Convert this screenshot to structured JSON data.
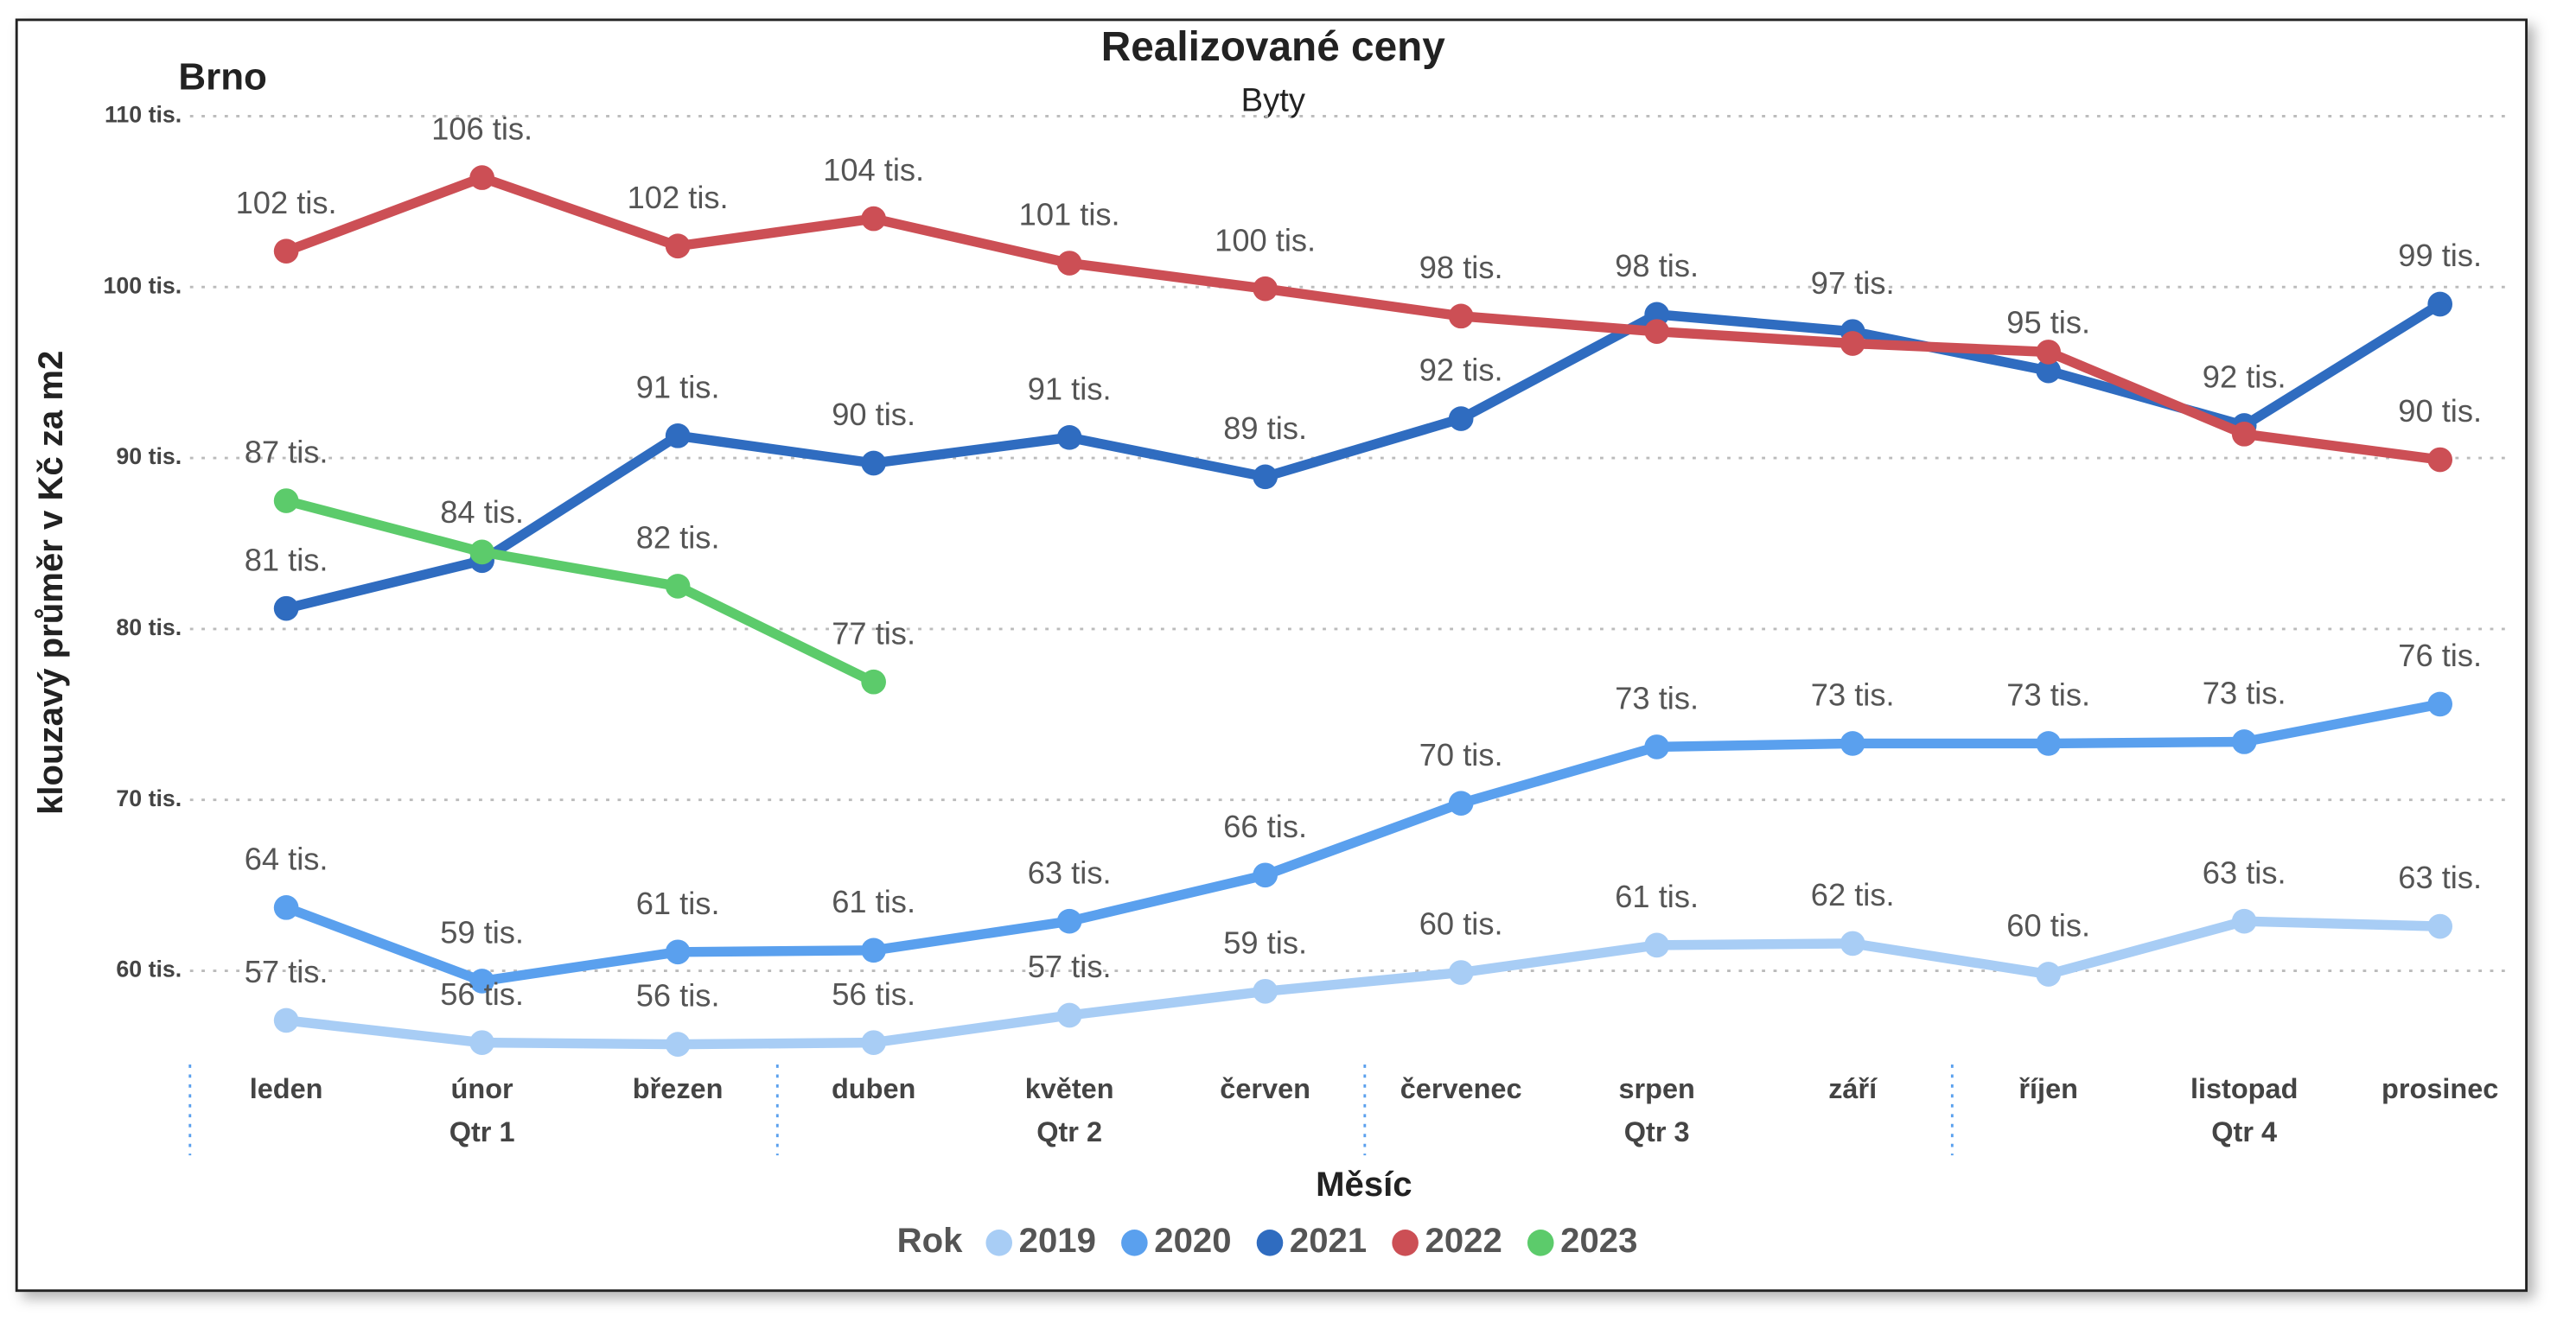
{
  "chart_data": {
    "type": "line",
    "title": "Realizované ceny",
    "subtitle": "Byty",
    "corner_label": "Brno",
    "x_label": "Měsíc",
    "y_label": "klouzavý průměr v Kč za m2",
    "legend_title": "Rok",
    "categories": [
      "leden",
      "únor",
      "březen",
      "duben",
      "květen",
      "červen",
      "červenec",
      "srpen",
      "září",
      "říjen",
      "listopad",
      "prosinec"
    ],
    "quarters": [
      "Qtr 1",
      "Qtr 2",
      "Qtr 3",
      "Qtr 4"
    ],
    "ylim": [
      55,
      111
    ],
    "yticks": [
      {
        "value": 60,
        "label": "60 tis."
      },
      {
        "value": 70,
        "label": "70 tis."
      },
      {
        "value": 80,
        "label": "80 tis."
      },
      {
        "value": 90,
        "label": "90 tis."
      },
      {
        "value": 100,
        "label": "100 tis."
      },
      {
        "value": 110,
        "label": "110 tis."
      }
    ],
    "grid": true,
    "legend": "bottom",
    "series": [
      {
        "name": "2019",
        "color": "#a8cdf5",
        "values": [
          57.1,
          55.8,
          55.7,
          55.8,
          57.4,
          58.8,
          59.9,
          61.5,
          61.6,
          59.8,
          62.9,
          62.6
        ],
        "value_labels": [
          "57 tis.",
          "56 tis.",
          "56 tis.",
          "56 tis.",
          "57 tis.",
          "59 tis.",
          "60 tis.",
          "61 tis.",
          "62 tis.",
          "60 tis.",
          "63 tis.",
          "63 tis."
        ]
      },
      {
        "name": "2020",
        "color": "#5aa0ee",
        "values": [
          63.7,
          59.4,
          61.1,
          61.2,
          62.9,
          65.6,
          69.8,
          73.1,
          73.3,
          73.3,
          73.4,
          75.6
        ],
        "value_labels": [
          "64 tis.",
          "59 tis.",
          "61 tis.",
          "61 tis.",
          "63 tis.",
          "66 tis.",
          "70 tis.",
          "73 tis.",
          "73 tis.",
          "73 tis.",
          "73 tis.",
          "76 tis."
        ]
      },
      {
        "name": "2021",
        "color": "#2f6cc0",
        "values": [
          81.2,
          84.0,
          91.3,
          89.7,
          91.2,
          88.9,
          92.3,
          98.4,
          97.4,
          95.1,
          91.9,
          99.0
        ],
        "value_labels": [
          "81 tis.",
          "84 tis.",
          "91 tis.",
          "90 tis.",
          "91 tis.",
          "89 tis.",
          "92 tis.",
          "98 tis.",
          "97 tis.",
          "95 tis.",
          "92 tis.",
          "99 tis."
        ]
      },
      {
        "name": "2022",
        "color": "#cc4f55",
        "values": [
          102.1,
          106.4,
          102.4,
          104.0,
          101.4,
          99.9,
          98.3,
          97.4,
          96.7,
          96.2,
          91.4,
          89.9
        ],
        "value_labels": [
          "102 tis.",
          "106 tis.",
          "102 tis.",
          "104 tis.",
          "101 tis.",
          "100 tis.",
          "98 tis.",
          null,
          null,
          null,
          null,
          "90 tis."
        ]
      },
      {
        "name": "2023",
        "color": "#5ccb6b",
        "values": [
          87.5,
          84.5,
          82.5,
          76.9,
          null,
          null,
          null,
          null,
          null,
          null,
          null,
          null
        ],
        "value_labels": [
          "87 tis.",
          null,
          "82 tis.",
          "77 tis.",
          null,
          null,
          null,
          null,
          null,
          null,
          null,
          null
        ]
      }
    ]
  }
}
